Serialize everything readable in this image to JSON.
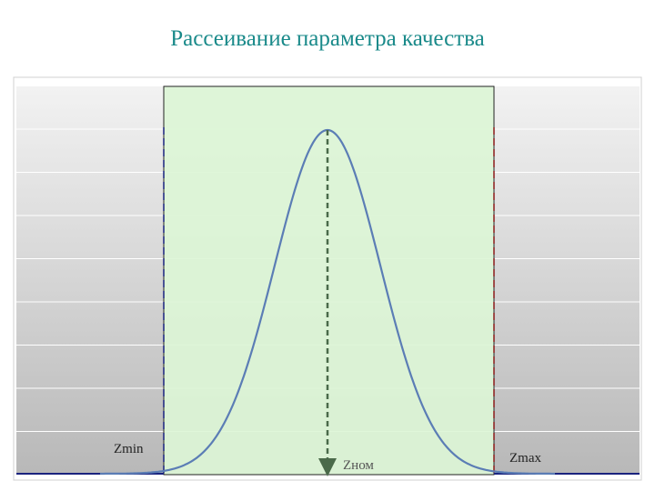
{
  "title": "Рассеивание параметра качества",
  "labels": {
    "zmin": "Zmin",
    "znom": "Zном",
    "zmax": "Zmax"
  }
}
